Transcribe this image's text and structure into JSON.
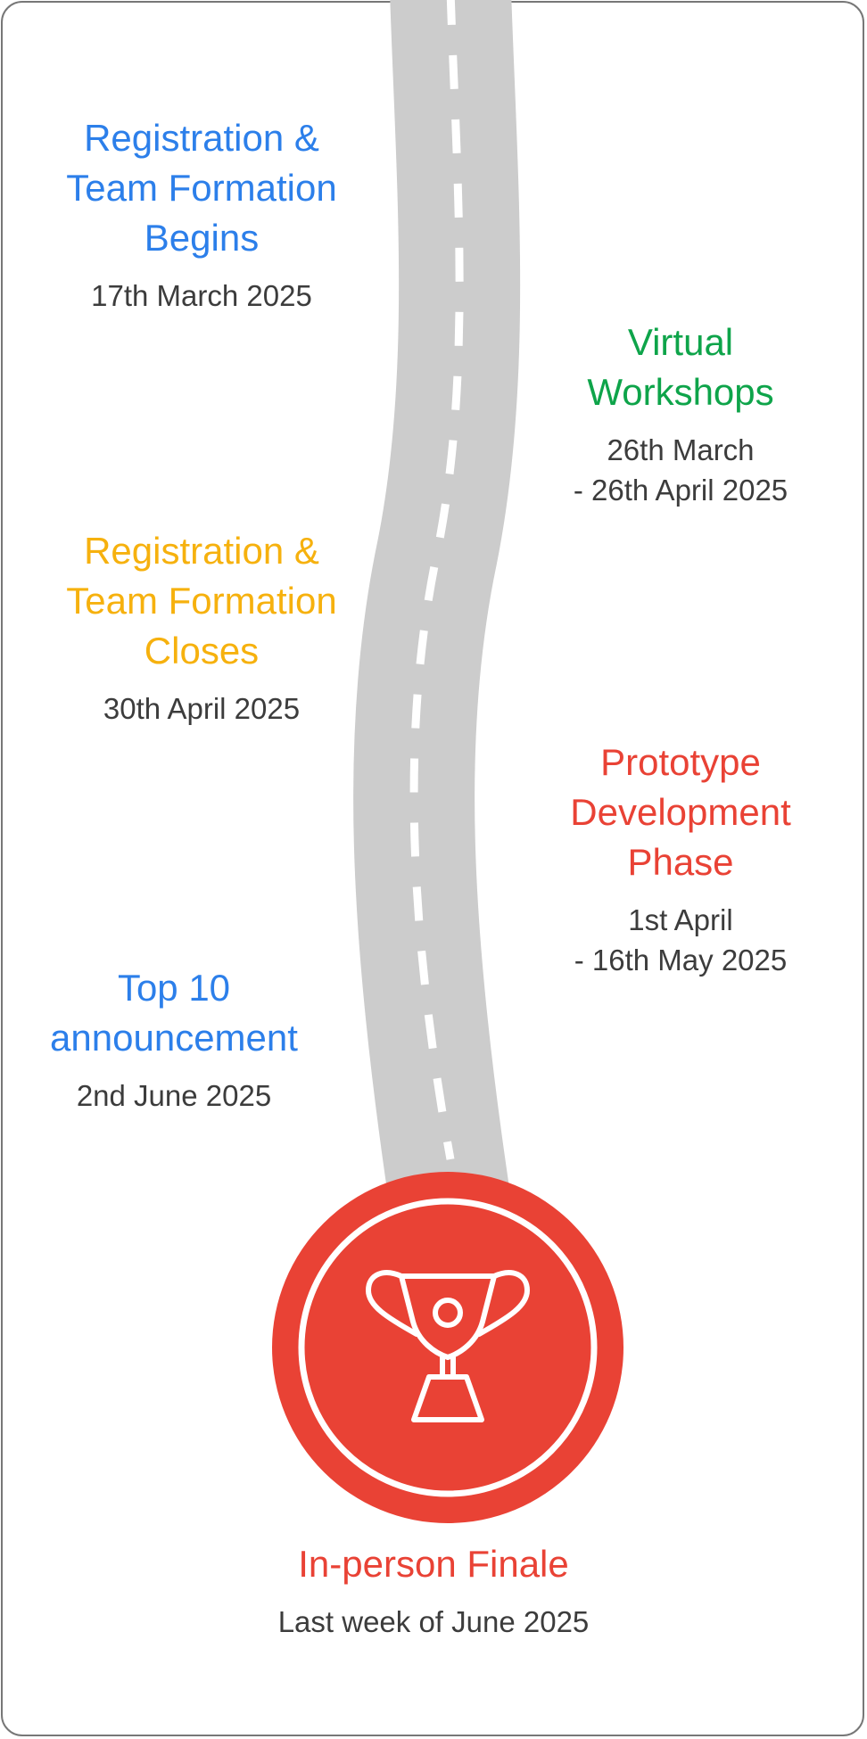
{
  "colors": {
    "blue": "#2c7fea",
    "green": "#0ea44a",
    "yellow": "#f6b10e",
    "red": "#e94235",
    "road": "#cccccc",
    "dash": "#ffffff",
    "text": "#3c3c3c"
  },
  "icons": {
    "finale": "trophy-icon"
  },
  "milestones": {
    "registration_begins": {
      "title": "Registration &\nTeam Formation\nBegins",
      "date": "17th March 2025",
      "color": "blue"
    },
    "workshops": {
      "title": "Virtual\nWorkshops",
      "date": "26th March\n- 26th April 2025",
      "color": "green"
    },
    "registration_closes": {
      "title": "Registration &\nTeam Formation\nCloses",
      "date": "30th April 2025",
      "color": "yellow"
    },
    "prototype": {
      "title": "Prototype\nDevelopment\nPhase",
      "date": "1st April\n- 16th May 2025",
      "color": "red"
    },
    "top10": {
      "title": "Top 10\nannouncement",
      "date": "2nd June 2025",
      "color": "blue"
    },
    "finale": {
      "title": "In-person Finale",
      "date": "Last week of June 2025",
      "color": "red"
    }
  }
}
